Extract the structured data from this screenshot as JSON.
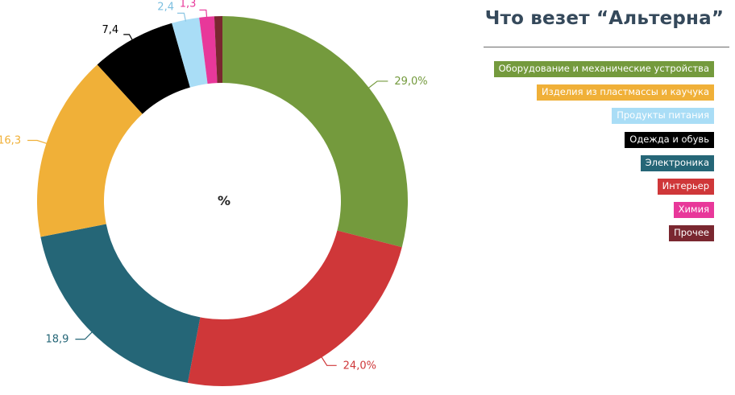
{
  "title": "Что везет “Альтерна”",
  "chart_data": {
    "type": "pie",
    "style": "donut",
    "center_label": "%",
    "slices": [
      {
        "name": "Оборудование и механические устройства",
        "value": 29.0,
        "label": "29,0%",
        "color": "#749a3d"
      },
      {
        "name": "Интерьер",
        "value": 24.0,
        "label": "24,0%",
        "color": "#cf3739"
      },
      {
        "name": "Электроника",
        "value": 18.9,
        "label": "18,9",
        "color": "#256677"
      },
      {
        "name": "Изделия из пластмассы и каучука",
        "value": 16.3,
        "label": "16,3",
        "color": "#f0b038"
      },
      {
        "name": "Одежда и обувь",
        "value": 7.4,
        "label": "7,4",
        "color": "#000000"
      },
      {
        "name": "Продукты питания",
        "value": 2.4,
        "label": "2,4",
        "color": "#a9ddf6"
      },
      {
        "name": "Химия",
        "value": 1.3,
        "label": "1,3",
        "color": "#e8389a"
      },
      {
        "name": "Прочее",
        "value": 0.7,
        "label": "",
        "color": "#7a2730"
      }
    ],
    "legend": [
      {
        "label": "Оборудование и механические устройства",
        "color": "#749a3d"
      },
      {
        "label": "Изделия из пластмассы и каучука",
        "color": "#f0b038"
      },
      {
        "label": "Продукты питания",
        "color": "#a9ddf6"
      },
      {
        "label": "Одежда и обувь",
        "color": "#000000"
      },
      {
        "label": "Электроника",
        "color": "#256677"
      },
      {
        "label": "Интерьер",
        "color": "#cf3739"
      },
      {
        "label": "Химия",
        "color": "#e8389a"
      },
      {
        "label": "Прочее",
        "color": "#7a2730"
      }
    ],
    "legend_position": "right"
  }
}
